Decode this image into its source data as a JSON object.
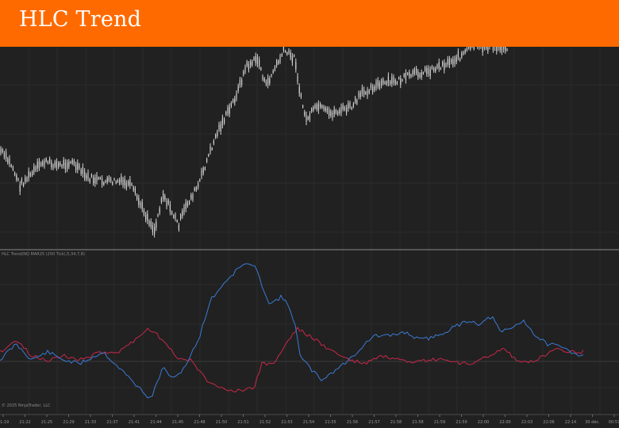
{
  "header": {
    "title": "HLC Trend",
    "background": "#ff6a00"
  },
  "price_panel": {
    "candle_color": "#d4d4d4",
    "background": "#212121"
  },
  "indicator_panel": {
    "caption": "HLC Trend(NQ MAR25 (250 Tick),5,34,7,8)",
    "blue_line_color": "#3a7bd5",
    "red_line_color": "#c8284a"
  },
  "footer": {
    "copyright": "© 2025 NinjaTrader, LLC"
  },
  "time_axis": {
    "ticks": [
      "21:19",
      "21:22",
      "21:25",
      "21:29",
      "21:33",
      "21:37",
      "21:41",
      "21:44",
      "21:45",
      "21:48",
      "21:50",
      "21:51",
      "21:52",
      "21:53",
      "21:54",
      "21:55",
      "21:56",
      "21:57",
      "21:58",
      "21:58",
      "21:59",
      "21:59",
      "22:00",
      "22:00",
      "22:03",
      "22:06",
      "22:14",
      "30 déc.",
      "00:57"
    ]
  }
}
